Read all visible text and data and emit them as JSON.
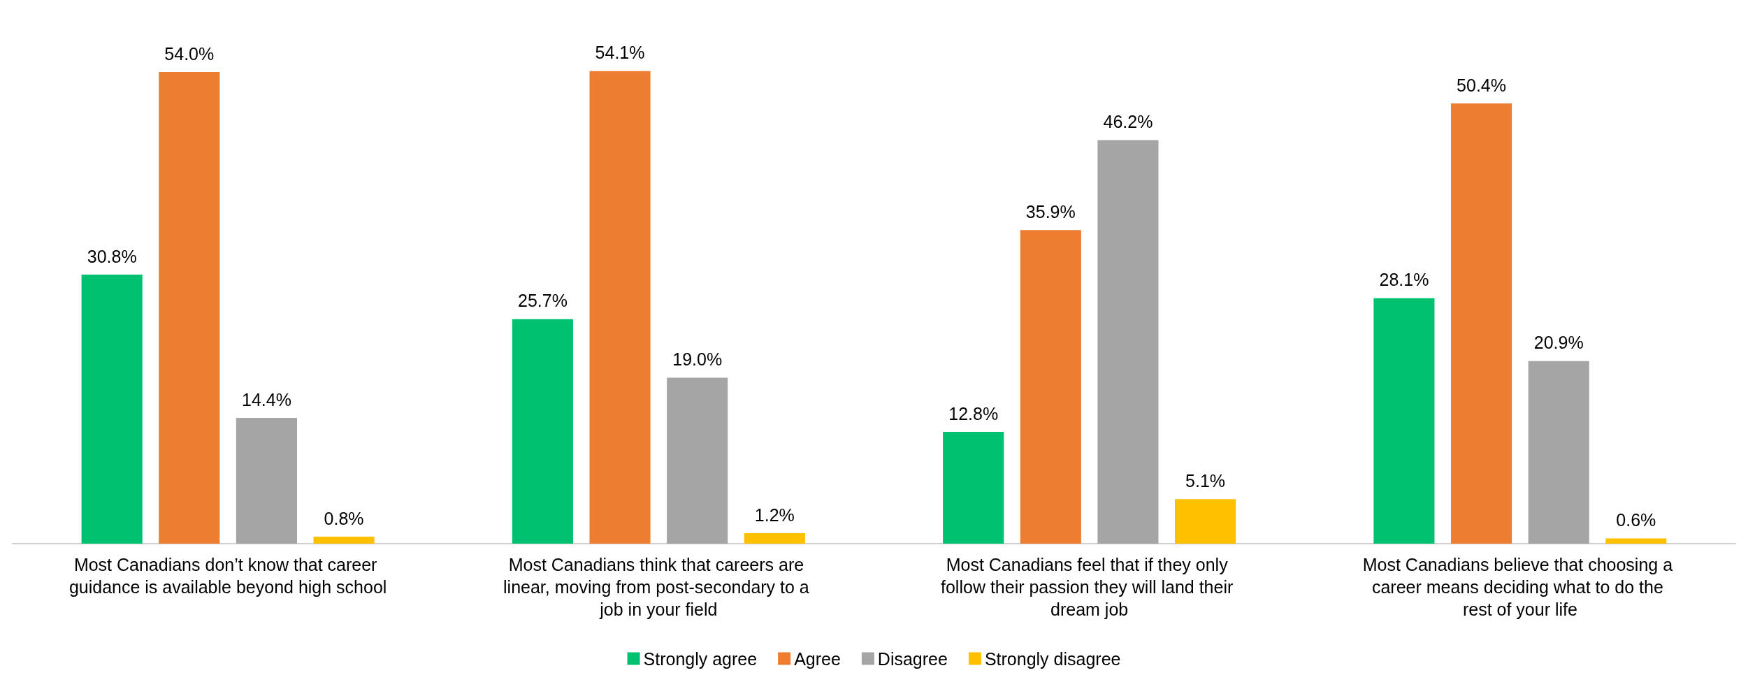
{
  "chart_data": {
    "type": "bar",
    "categories": [
      "Most Canadians don’t know that career guidance is available beyond high school",
      "Most Canadians think that careers are linear, moving from post-secondary to a job in your field",
      "Most Canadians feel that if they only follow their passion they will land their dream job",
      "Most Canadians believe that choosing a career means deciding what to do the rest of your life"
    ],
    "series": [
      {
        "name": "Strongly agree",
        "color": "#00c170",
        "values": [
          30.8,
          25.7,
          12.8,
          28.1
        ],
        "value_labels": [
          "30.8%",
          "25.7%",
          "12.8%",
          "28.1%"
        ]
      },
      {
        "name": "Agree",
        "color": "#ed7d31",
        "values": [
          54.0,
          54.1,
          35.9,
          50.4
        ],
        "value_labels": [
          "54.0%",
          "54.1%",
          "35.9%",
          "50.4%"
        ]
      },
      {
        "name": "Disagree",
        "color": "#a5a5a5",
        "values": [
          14.4,
          19.0,
          46.2,
          20.9
        ],
        "value_labels": [
          "14.4%",
          "19.0%",
          "46.2%",
          "20.9%"
        ]
      },
      {
        "name": "Strongly disagree",
        "color": "#ffc000",
        "values": [
          0.8,
          1.2,
          5.1,
          0.6
        ],
        "value_labels": [
          "0.8%",
          "1.2%",
          "5.1%",
          "0.6%"
        ]
      }
    ],
    "grid": false,
    "legend": "bottom"
  }
}
